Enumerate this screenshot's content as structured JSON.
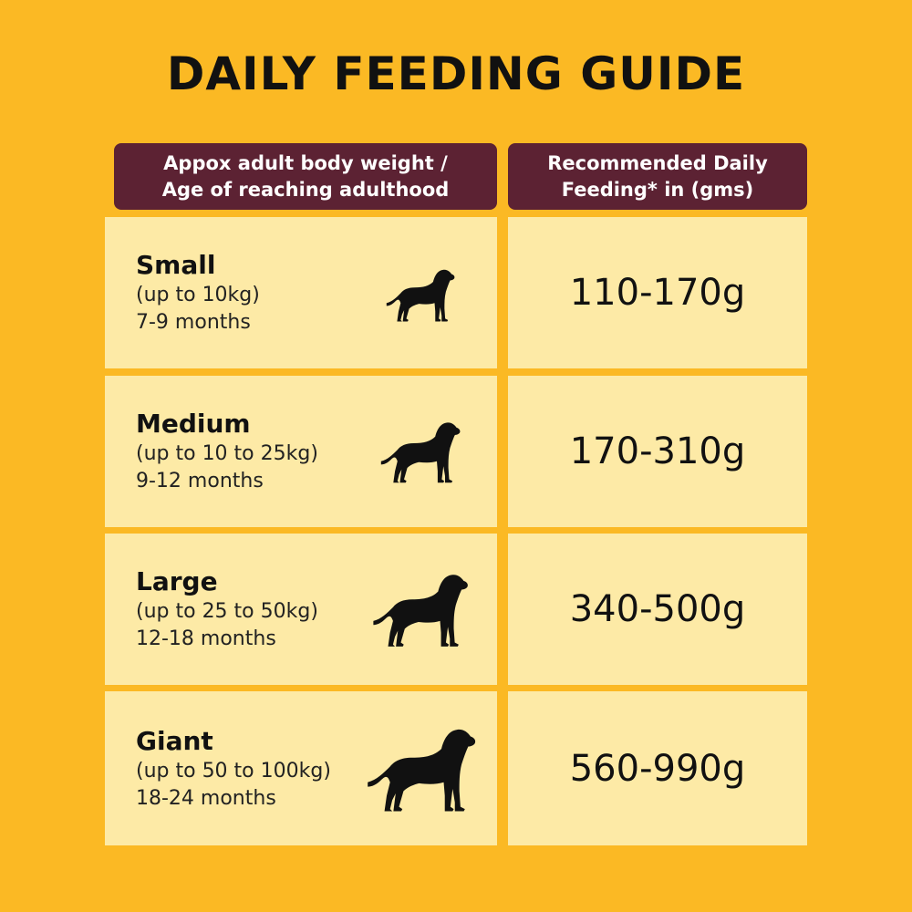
{
  "title": "DAILY FEEDING GUIDE",
  "headers": {
    "left": [
      "Appox adult body weight /",
      "Age of reaching adulthood"
    ],
    "right": [
      "Recommended Daily",
      "Feeding* in (gms)"
    ]
  },
  "rows": [
    {
      "size": "Small",
      "weight": "(up to 10kg)",
      "age": "7-9 months",
      "feeding": "110-170g",
      "icon": "dog-silhouette-icon"
    },
    {
      "size": "Medium",
      "weight": "(up to 10 to 25kg)",
      "age": "9-12 months",
      "feeding": "170-310g",
      "icon": "dog-silhouette-icon"
    },
    {
      "size": "Large",
      "weight": "(up to 25 to 50kg)",
      "age": "12-18 months",
      "feeding": "340-500g",
      "icon": "dog-silhouette-icon"
    },
    {
      "size": "Giant",
      "weight": "(up to 50 to 100kg)",
      "age": "18-24 months",
      "feeding": "560-990g",
      "icon": "dog-silhouette-icon"
    }
  ],
  "colors": {
    "background": "#FBB924",
    "header": "#5C2233",
    "cell": "#FDEAA6"
  }
}
